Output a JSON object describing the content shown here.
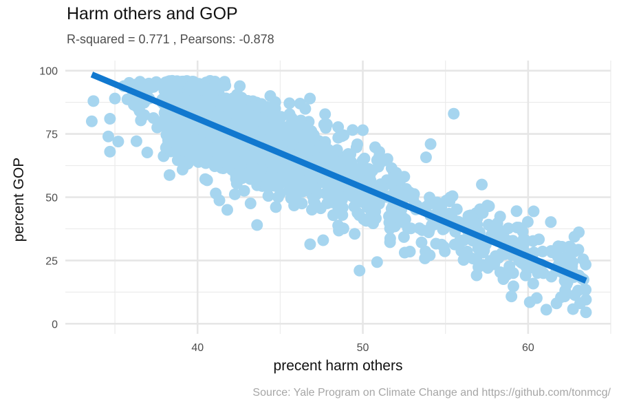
{
  "chart_data": {
    "type": "scatter",
    "title": "Harm others and GOP",
    "subtitle": "R-squared =  0.771 , Pearsons: -0.878",
    "caption": "Source: Yale Program on Climate Change and https://github.com/tonmcg/",
    "xlabel": "precent harm others",
    "ylabel": "percent GOP",
    "xlim": [
      32,
      65
    ],
    "ylim": [
      -4,
      104
    ],
    "x_ticks": [
      40,
      50,
      60
    ],
    "y_ticks": [
      0,
      25,
      50,
      75,
      100
    ],
    "grid": true,
    "point_color": "#a6d5ef",
    "fit_line_color": "#1178cf",
    "fit_line": {
      "x": [
        33.6,
        63.5
      ],
      "y": [
        98.5,
        17
      ]
    },
    "outliers": [
      {
        "x": 33.7,
        "y": 88
      },
      {
        "x": 33.6,
        "y": 80
      },
      {
        "x": 34.7,
        "y": 81
      },
      {
        "x": 34.6,
        "y": 74
      },
      {
        "x": 34.7,
        "y": 68
      },
      {
        "x": 35.0,
        "y": 89
      },
      {
        "x": 35.2,
        "y": 72
      },
      {
        "x": 37.5,
        "y": 95.5
      },
      {
        "x": 41.1,
        "y": 51.5
      },
      {
        "x": 41.8,
        "y": 45
      },
      {
        "x": 43.6,
        "y": 39
      },
      {
        "x": 44.4,
        "y": 90
      },
      {
        "x": 46.8,
        "y": 89
      },
      {
        "x": 47.6,
        "y": 33
      },
      {
        "x": 50.0,
        "y": 76.5
      },
      {
        "x": 49.8,
        "y": 21
      },
      {
        "x": 54.1,
        "y": 71
      },
      {
        "x": 55.5,
        "y": 83
      },
      {
        "x": 57.2,
        "y": 55
      },
      {
        "x": 59.1,
        "y": 20
      },
      {
        "x": 60.1,
        "y": 8.5
      },
      {
        "x": 62.6,
        "y": 30
      },
      {
        "x": 63.5,
        "y": 9.5
      },
      {
        "x": 63.5,
        "y": 4.5
      },
      {
        "x": 59.3,
        "y": 44.5
      },
      {
        "x": 51.6,
        "y": 40
      },
      {
        "x": 46.2,
        "y": 87
      }
    ],
    "cluster": {
      "n": 2100,
      "seed": 7,
      "x_range": [
        35.5,
        63.5
      ],
      "y_spread": 8.5
    }
  }
}
